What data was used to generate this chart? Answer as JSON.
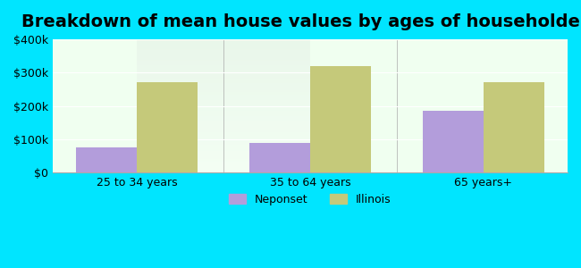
{
  "title": "Breakdown of mean house values by ages of householders",
  "categories": [
    "25 to 34 years",
    "35 to 64 years",
    "65 years+"
  ],
  "neponset_values": [
    75000,
    90000,
    185000
  ],
  "illinois_values": [
    270000,
    320000,
    270000
  ],
  "neponset_color": "#b39ddb",
  "illinois_color": "#c5c97a",
  "ylim": [
    0,
    400000
  ],
  "yticks": [
    0,
    100000,
    200000,
    300000,
    400000
  ],
  "ytick_labels": [
    "$0",
    "$100k",
    "$200k",
    "$300k",
    "$400k"
  ],
  "legend_neponset": "Neponset",
  "legend_illinois": "Illinois",
  "background_outer": "#00e5ff",
  "background_inner_top": "#e8f5e9",
  "background_inner_bottom": "#f0fff0",
  "bar_width": 0.35,
  "title_fontsize": 14,
  "tick_fontsize": 9,
  "legend_fontsize": 9
}
